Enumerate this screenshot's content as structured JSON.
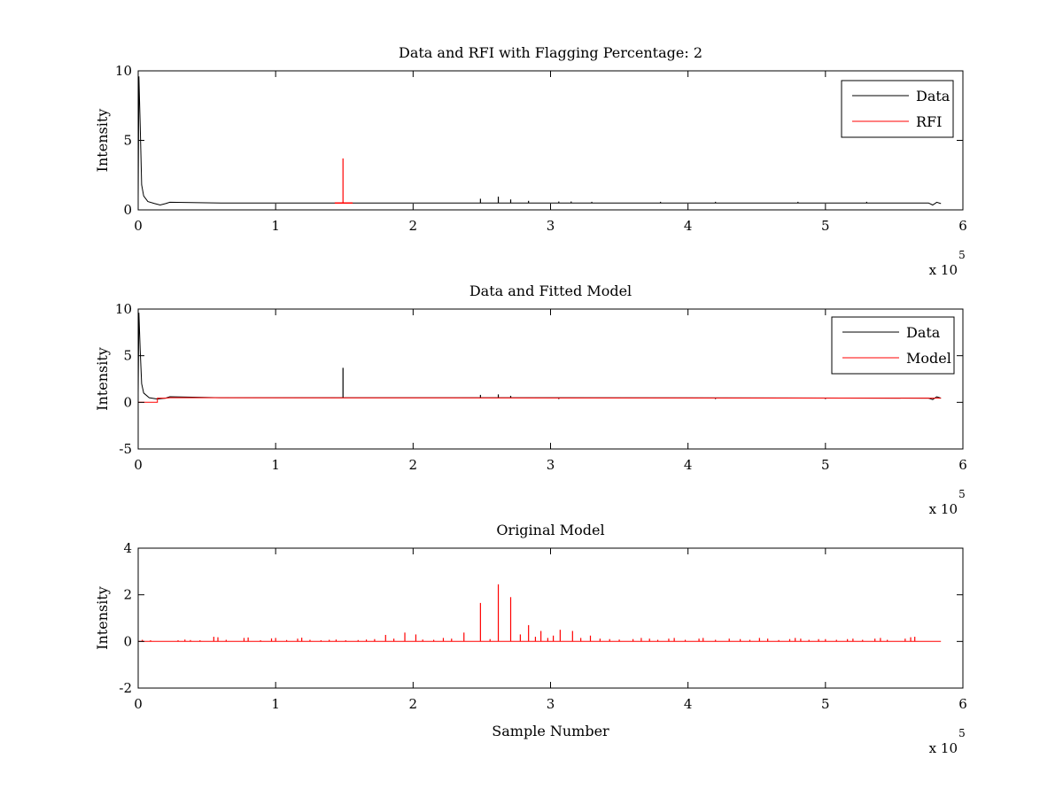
{
  "colors": {
    "data": "#000000",
    "red": "#ff0000",
    "background": "#ffffff",
    "axes": "#000000"
  },
  "chart_data": [
    {
      "type": "line",
      "title": "Data and RFI with Flagging Percentage: 2",
      "xlabel": "",
      "ylabel": "Intensity",
      "xlim": [
        0,
        600000
      ],
      "ylim": [
        0,
        10
      ],
      "xticks": [
        0,
        1,
        2,
        3,
        4,
        5,
        6
      ],
      "yticks": [
        0,
        5,
        10
      ],
      "x_exponent_label": "x 10",
      "x_exponent_power": "5",
      "grid": false,
      "legend": {
        "position": "top-right",
        "entries": [
          "Data",
          "RFI"
        ]
      },
      "series": [
        {
          "name": "Data",
          "color": "#000000",
          "baseline": 0.5,
          "points": [
            [
              0,
              0.8
            ],
            [
              500,
              9.6
            ],
            [
              1500,
              6.0
            ],
            [
              2500,
              1.8
            ],
            [
              4000,
              1.0
            ],
            [
              7000,
              0.6
            ],
            [
              12000,
              0.45
            ],
            [
              16000,
              0.35
            ],
            [
              20000,
              0.45
            ],
            [
              23000,
              0.55
            ],
            [
              60000,
              0.5
            ],
            [
              145000,
              0.5
            ],
            [
              575000,
              0.5
            ],
            [
              578000,
              0.35
            ],
            [
              581000,
              0.55
            ],
            [
              584000,
              0.45
            ]
          ],
          "spikes": [
            [
              249000,
              0.8
            ],
            [
              262000,
              0.95
            ],
            [
              271000,
              0.75
            ],
            [
              284000,
              0.65
            ],
            [
              306000,
              0.6
            ],
            [
              315000,
              0.6
            ],
            [
              330000,
              0.58
            ],
            [
              380000,
              0.58
            ],
            [
              420000,
              0.58
            ],
            [
              480000,
              0.58
            ],
            [
              530000,
              0.58
            ]
          ]
        },
        {
          "name": "RFI",
          "color": "#ff0000",
          "segments": [
            [
              [
                143000,
                0.5
              ],
              [
                156000,
                0.5
              ]
            ]
          ],
          "spikes": [
            [
              149000,
              3.7
            ]
          ]
        }
      ]
    },
    {
      "type": "line",
      "title": "Data and Fitted Model",
      "xlabel": "",
      "ylabel": "Intensity",
      "xlim": [
        0,
        600000
      ],
      "ylim": [
        -5,
        10
      ],
      "xticks": [
        0,
        1,
        2,
        3,
        4,
        5,
        6
      ],
      "yticks": [
        -5,
        0,
        5,
        10
      ],
      "x_exponent_label": "x 10",
      "x_exponent_power": "5",
      "grid": false,
      "legend": {
        "position": "top-right",
        "entries": [
          "Data",
          "Model"
        ]
      },
      "series": [
        {
          "name": "Data",
          "color": "#000000",
          "points": [
            [
              0,
              1.0
            ],
            [
              500,
              9.6
            ],
            [
              1500,
              5.5
            ],
            [
              2500,
              2.0
            ],
            [
              4000,
              1.0
            ],
            [
              8000,
              0.5
            ],
            [
              14000,
              0.35
            ],
            [
              20000,
              0.45
            ],
            [
              23000,
              0.6
            ],
            [
              60000,
              0.5
            ],
            [
              300000,
              0.5
            ],
            [
              575000,
              0.45
            ],
            [
              578000,
              0.3
            ],
            [
              581000,
              0.6
            ],
            [
              584000,
              0.45
            ]
          ],
          "spikes": [
            [
              149000,
              3.7
            ],
            [
              249000,
              0.8
            ],
            [
              262000,
              0.85
            ],
            [
              271000,
              0.7
            ],
            [
              306000,
              0.35
            ],
            [
              420000,
              0.35
            ],
            [
              500000,
              0.35
            ]
          ]
        },
        {
          "name": "Model",
          "color": "#ff0000",
          "points": [
            [
              0,
              0.0
            ],
            [
              14000,
              0.0
            ],
            [
              14000,
              0.45
            ],
            [
              20000,
              0.45
            ],
            [
              23000,
              0.5
            ],
            [
              584000,
              0.45
            ]
          ]
        }
      ]
    },
    {
      "type": "line",
      "title": "Original Model",
      "xlabel": "Sample Number",
      "ylabel": "Intensity",
      "xlim": [
        0,
        600000
      ],
      "ylim": [
        -2,
        4
      ],
      "xticks": [
        0,
        1,
        2,
        3,
        4,
        5,
        6
      ],
      "yticks": [
        -2,
        0,
        2,
        4
      ],
      "x_exponent_label": "x 10",
      "x_exponent_power": "5",
      "grid": false,
      "series": [
        {
          "name": "",
          "color": "#ff0000",
          "baseline": 0,
          "points": [
            [
              0,
              0
            ],
            [
              584000,
              0
            ]
          ],
          "spikes": [
            [
              3000,
              0.07
            ],
            [
              9000,
              0.05
            ],
            [
              29000,
              0.05
            ],
            [
              34000,
              0.08
            ],
            [
              38000,
              0.06
            ],
            [
              45000,
              0.05
            ],
            [
              55000,
              0.2
            ],
            [
              58000,
              0.18
            ],
            [
              64000,
              0.07
            ],
            [
              77000,
              0.15
            ],
            [
              80000,
              0.17
            ],
            [
              89000,
              0.05
            ],
            [
              97000,
              0.13
            ],
            [
              100000,
              0.15
            ],
            [
              108000,
              0.06
            ],
            [
              116000,
              0.12
            ],
            [
              119000,
              0.16
            ],
            [
              125000,
              0.07
            ],
            [
              133000,
              0.05
            ],
            [
              139000,
              0.07
            ],
            [
              144000,
              0.08
            ],
            [
              151000,
              0.05
            ],
            [
              160000,
              0.06
            ],
            [
              166000,
              0.08
            ],
            [
              172000,
              0.1
            ],
            [
              180000,
              0.28
            ],
            [
              186000,
              0.12
            ],
            [
              194000,
              0.38
            ],
            [
              202000,
              0.3
            ],
            [
              207000,
              0.08
            ],
            [
              215000,
              0.07
            ],
            [
              222000,
              0.15
            ],
            [
              228000,
              0.12
            ],
            [
              237000,
              0.38
            ],
            [
              249000,
              1.65
            ],
            [
              256000,
              0.1
            ],
            [
              262000,
              2.45
            ],
            [
              271000,
              1.9
            ],
            [
              278000,
              0.3
            ],
            [
              284000,
              0.7
            ],
            [
              289000,
              0.2
            ],
            [
              293000,
              0.45
            ],
            [
              298000,
              0.15
            ],
            [
              302000,
              0.25
            ],
            [
              307000,
              0.5
            ],
            [
              316000,
              0.45
            ],
            [
              322000,
              0.15
            ],
            [
              329000,
              0.25
            ],
            [
              336000,
              0.12
            ],
            [
              343000,
              0.1
            ],
            [
              350000,
              0.08
            ],
            [
              360000,
              0.1
            ],
            [
              366000,
              0.15
            ],
            [
              372000,
              0.12
            ],
            [
              378000,
              0.07
            ],
            [
              386000,
              0.12
            ],
            [
              390000,
              0.15
            ],
            [
              398000,
              0.07
            ],
            [
              408000,
              0.12
            ],
            [
              411000,
              0.15
            ],
            [
              420000,
              0.07
            ],
            [
              430000,
              0.12
            ],
            [
              438000,
              0.1
            ],
            [
              445000,
              0.07
            ],
            [
              452000,
              0.15
            ],
            [
              458000,
              0.12
            ],
            [
              466000,
              0.06
            ],
            [
              474000,
              0.1
            ],
            [
              478000,
              0.15
            ],
            [
              482000,
              0.12
            ],
            [
              488000,
              0.07
            ],
            [
              495000,
              0.1
            ],
            [
              500000,
              0.1
            ],
            [
              508000,
              0.07
            ],
            [
              516000,
              0.1
            ],
            [
              520000,
              0.12
            ],
            [
              527000,
              0.07
            ],
            [
              536000,
              0.12
            ],
            [
              540000,
              0.15
            ],
            [
              545000,
              0.07
            ],
            [
              558000,
              0.12
            ],
            [
              562000,
              0.18
            ],
            [
              565000,
              0.2
            ]
          ]
        }
      ]
    }
  ]
}
